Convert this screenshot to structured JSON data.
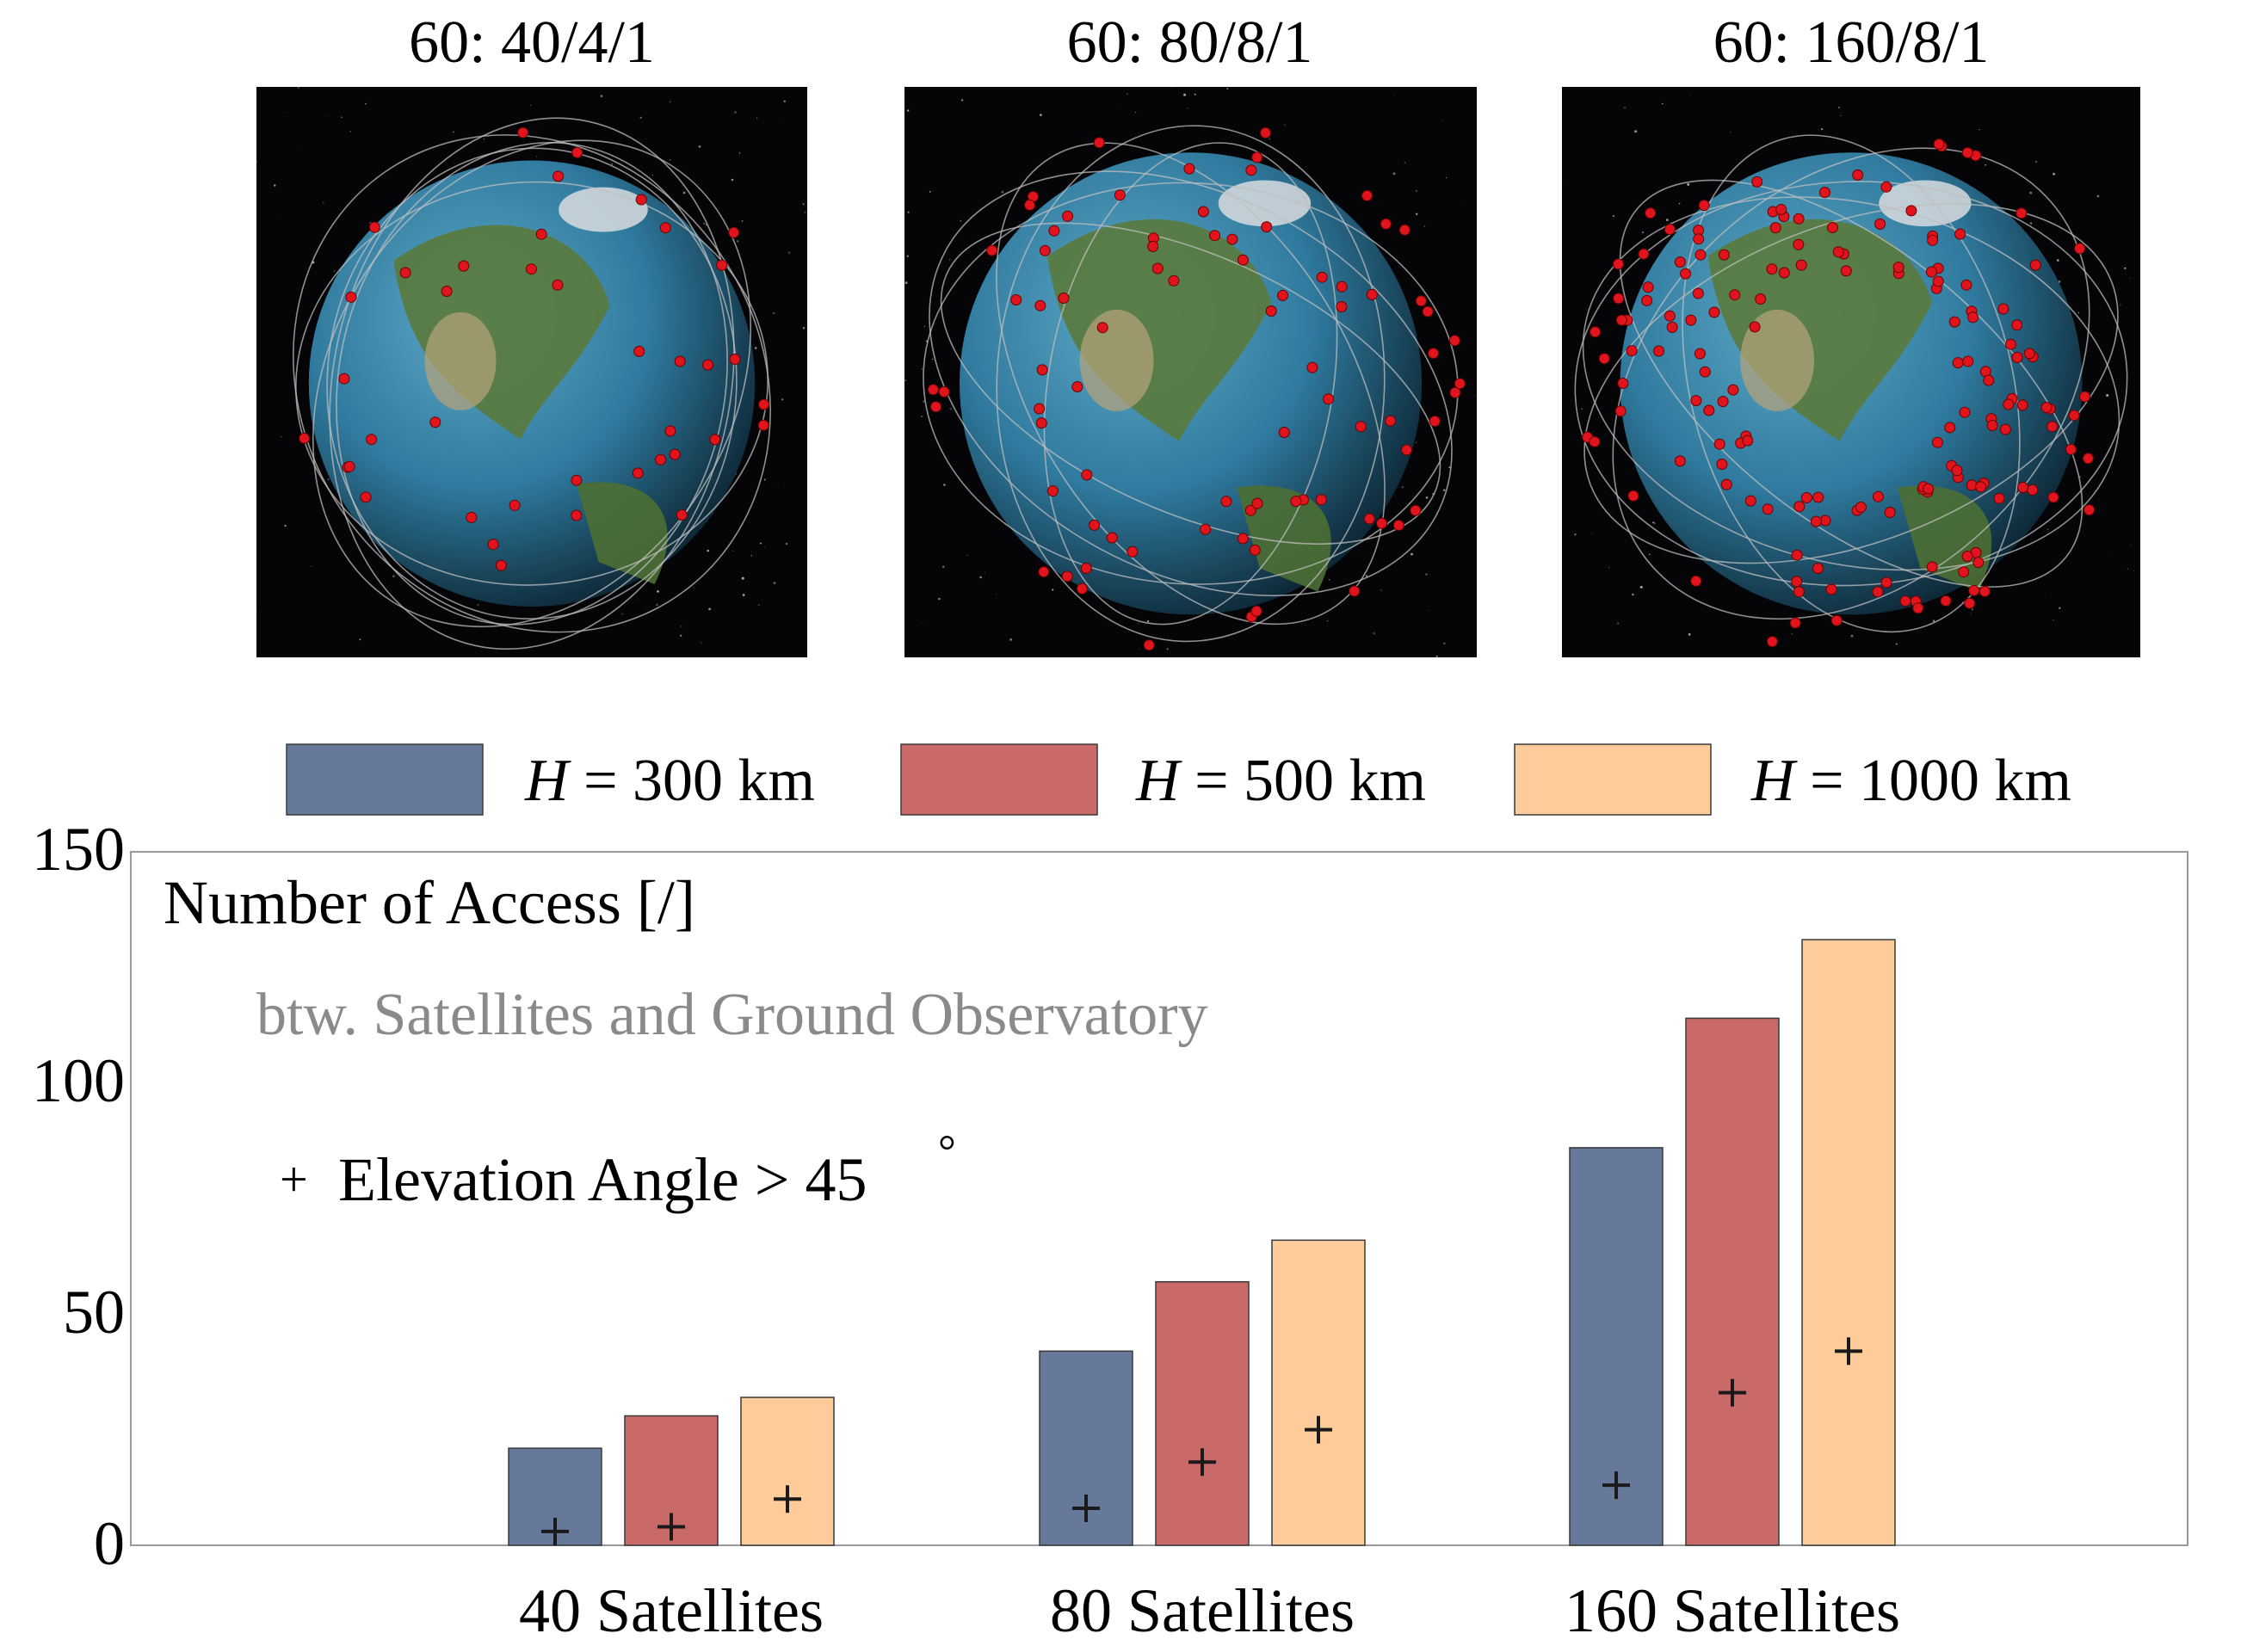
{
  "panels": [
    {
      "title": "60: 40/4/1",
      "satellites": 40
    },
    {
      "title": "60: 80/8/1",
      "satellites": 80
    },
    {
      "title": "60: 160/8/1",
      "satellites": 160
    }
  ],
  "colors": {
    "h300": "#66799a",
    "h500": "#ca6a68",
    "h1000": "#fdcc9a",
    "marker": "#e0141c",
    "space": "#050507",
    "ocean": "#2f7a9e",
    "land": "#5a7a3c"
  },
  "chart_data": {
    "type": "bar",
    "title": "Number of Access [/]",
    "subtitle": "btw. Satellites and Ground Observatory",
    "annotation": {
      "marker": "+",
      "text": "Elevation Angle > 45",
      "degree": "°"
    },
    "categories": [
      "40 Satellites",
      "80 Satellites",
      "160 Satellites"
    ],
    "series": [
      {
        "name": "H = 300 km",
        "italic": "H",
        "rest": " = 300 km",
        "color_key": "h300",
        "values": [
          21,
          42,
          86
        ],
        "elevation_gt_45": [
          3,
          8,
          13
        ]
      },
      {
        "name": "H = 500 km",
        "italic": "H",
        "rest": " = 500 km",
        "color_key": "h500",
        "values": [
          28,
          57,
          114
        ],
        "elevation_gt_45": [
          4,
          18,
          33
        ]
      },
      {
        "name": "H = 1000 km",
        "italic": "H",
        "rest": " = 1000 km",
        "color_key": "h1000",
        "values": [
          32,
          66,
          131
        ],
        "elevation_gt_45": [
          10,
          25,
          42
        ]
      }
    ],
    "ylim": [
      0,
      150
    ],
    "yticks": [
      "0",
      "50",
      "100",
      "150"
    ],
    "legend_position": "top",
    "grid": false
  }
}
